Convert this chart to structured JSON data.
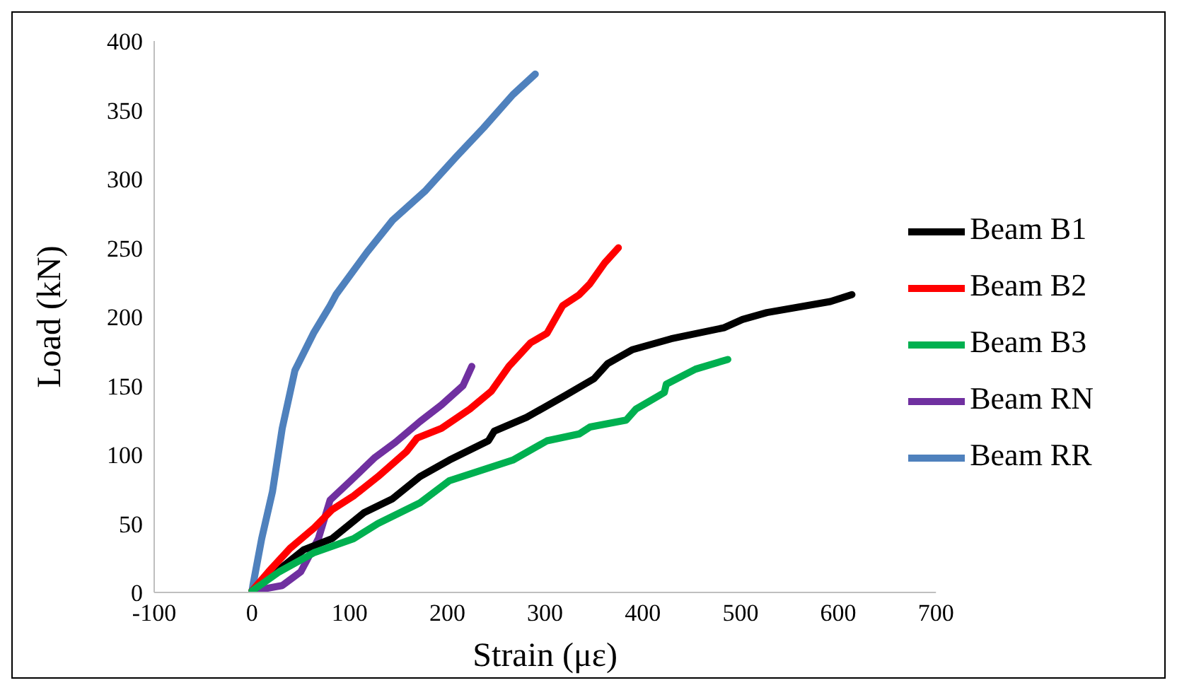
{
  "chart_data": {
    "type": "line",
    "xlabel": "Strain (με)",
    "ylabel": "Load (kN)",
    "xlim": [
      -100,
      700
    ],
    "xticks": [
      -100,
      0,
      100,
      200,
      300,
      400,
      500,
      600,
      700
    ],
    "ylim": [
      0,
      400
    ],
    "yticks": [
      0,
      50,
      100,
      150,
      200,
      250,
      300,
      350,
      400
    ],
    "grid": false,
    "legend": "right",
    "marker": "none",
    "line_style": "solid",
    "series": [
      {
        "name": "Beam RN",
        "color": "#7030a0",
        "x": [
          0,
          31,
          50,
          68,
          80,
          101,
          126,
          147,
          172,
          194,
          216,
          225
        ],
        "values": [
          1,
          5,
          15,
          39,
          67,
          81,
          98,
          109,
          124,
          136,
          150,
          164
        ]
      },
      {
        "name": "Beam RR",
        "color": "#4f81bd",
        "x": [
          0,
          1,
          10,
          21,
          31,
          44,
          63,
          80,
          86,
          118,
          144,
          177,
          209,
          237,
          267,
          290
        ],
        "values": [
          0,
          5,
          39,
          73,
          119,
          161,
          188,
          208,
          216,
          247,
          270,
          291,
          316,
          337,
          361,
          376
        ]
      },
      {
        "name": "Beam B1",
        "color": "#000000",
        "x": [
          0,
          25,
          53,
          82,
          115,
          144,
          172,
          202,
          242,
          248,
          281,
          321,
          350,
          364,
          389,
          429,
          483,
          502,
          527,
          592,
          614
        ],
        "values": [
          1,
          15,
          31,
          39,
          58,
          68,
          84,
          96,
          110,
          117,
          127,
          143,
          155,
          166,
          176,
          184,
          192,
          198,
          203,
          211,
          216
        ]
      },
      {
        "name": "Beam B2",
        "color": "#ff0000",
        "x": [
          0,
          17,
          39,
          64,
          82,
          104,
          129,
          158,
          169,
          194,
          223,
          245,
          263,
          285,
          302,
          318,
          335,
          346,
          361,
          375
        ],
        "values": [
          1,
          15,
          32,
          47,
          60,
          70,
          84,
          102,
          112,
          119,
          133,
          146,
          164,
          181,
          188,
          208,
          216,
          224,
          239,
          250
        ]
      },
      {
        "name": "Beam B3",
        "color": "#00b050",
        "x": [
          0,
          28,
          64,
          104,
          129,
          172,
          202,
          267,
          302,
          335,
          346,
          383,
          393,
          422,
          424,
          454,
          487
        ],
        "values": [
          1,
          15,
          29,
          39,
          50,
          65,
          81,
          96,
          110,
          115,
          120,
          125,
          133,
          145,
          151,
          162,
          169
        ]
      }
    ]
  }
}
